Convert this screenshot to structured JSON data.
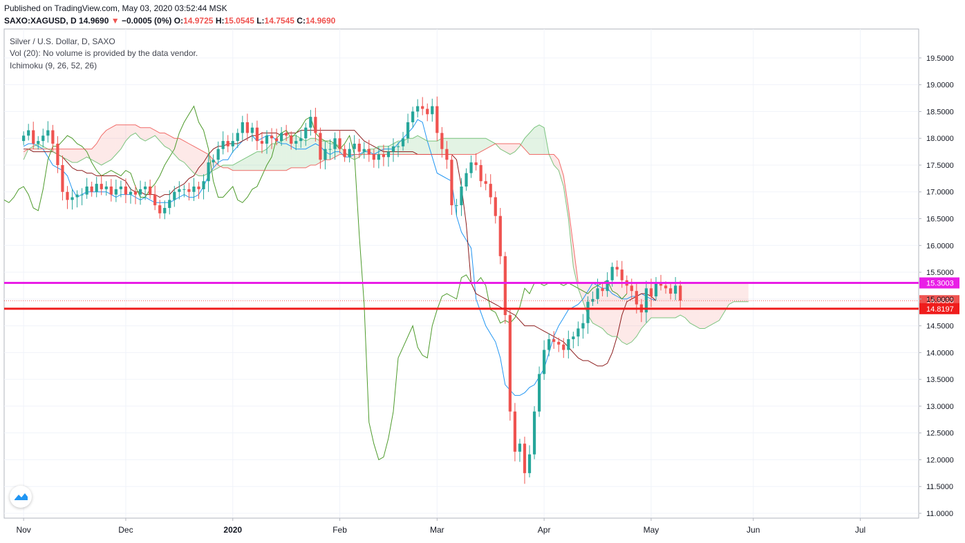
{
  "header": {
    "published": "Published on TradingView.com, May 03, 2020 03:52:44 MSK",
    "symbol": "SAXO:XAGUSD, D",
    "last": "14.9690",
    "down_arrow": "▼",
    "change": "−0.0005 (0%)",
    "o_label": "O:",
    "o_value": "14.9725",
    "h_label": "H:",
    "h_value": "15.0545",
    "l_label": "L:",
    "l_value": "14.7545",
    "c_label": "C:",
    "c_value": "14.9690"
  },
  "legend": {
    "title": "Silver / U.S. Dollar, D, SAXO",
    "volume": "Vol (20): No volume is provided by the data vendor.",
    "indicator": "Ichimoku (9, 26, 52, 26)"
  },
  "logo_icon": "tradingview-logo-icon",
  "colors": {
    "up": "#26a69a",
    "down": "#ef5350",
    "tenkan": "#2196f3",
    "kijun": "#8b1a1a",
    "chikou": "#4c9a2a",
    "span_a": "#66bb6a",
    "span_b": "#ef5350",
    "magenta_line": "#e91ee6",
    "red_line": "#ef1c1c"
  },
  "chart_data": {
    "type": "candlestick",
    "ylim": [
      11.0,
      19.5
    ],
    "y_ticks": [
      "19.5000",
      "19.0000",
      "18.5000",
      "18.0000",
      "17.5000",
      "17.0000",
      "16.5000",
      "16.0000",
      "15.5000",
      "15.0000",
      "14.5000",
      "14.0000",
      "13.5000",
      "13.0000",
      "12.5000",
      "12.0000",
      "11.5000",
      "11.0000"
    ],
    "x_labels": [
      {
        "label": "Nov",
        "bold": false,
        "x": 0
      },
      {
        "label": "Dec",
        "bold": false,
        "x": 21
      },
      {
        "label": "2020",
        "bold": true,
        "x": 43
      },
      {
        "label": "Feb",
        "bold": false,
        "x": 65
      },
      {
        "label": "Mar",
        "bold": false,
        "x": 85
      },
      {
        "label": "Apr",
        "bold": false,
        "x": 107
      },
      {
        "label": "May",
        "bold": false,
        "x": 129
      },
      {
        "label": "Jun",
        "bold": false,
        "x": 150
      },
      {
        "label": "Jul",
        "bold": false,
        "x": 172
      }
    ],
    "x_range": [
      -4,
      184
    ],
    "horizontal_lines": [
      {
        "value": 15.3003,
        "label": "15.3003",
        "color": "#e91ee6"
      },
      {
        "value": 14.8197,
        "label": "14.8197",
        "color": "#ef1c1c"
      }
    ],
    "last_price": {
      "value": 14.969,
      "label": "14.9690"
    },
    "close": [
      18.05,
      18.15,
      17.9,
      17.95,
      18.05,
      18.15,
      17.9,
      17.5,
      17.0,
      16.85,
      16.9,
      16.95,
      16.95,
      17.1,
      17.0,
      17.15,
      17.05,
      17.1,
      16.95,
      17.05,
      17.1,
      16.95,
      17.0,
      16.95,
      17.05,
      17.1,
      16.95,
      16.75,
      16.6,
      16.7,
      16.85,
      17.0,
      17.05,
      17.05,
      17.0,
      17.1,
      17.05,
      17.2,
      17.55,
      17.6,
      17.8,
      17.95,
      17.85,
      17.95,
      18.1,
      18.3,
      18.1,
      18.2,
      17.95,
      17.9,
      18.05,
      18.0,
      17.95,
      18.1,
      18.05,
      17.9,
      17.95,
      18.0,
      18.2,
      18.4,
      18.1,
      17.6,
      17.8,
      17.8,
      18.0,
      17.8,
      17.65,
      17.8,
      17.9,
      17.75,
      17.8,
      17.7,
      17.6,
      17.7,
      17.65,
      17.75,
      17.85,
      17.85,
      18.0,
      18.3,
      18.5,
      18.6,
      18.55,
      18.45,
      18.6,
      18.1,
      17.8,
      17.6,
      16.75,
      16.75,
      17.1,
      17.35,
      17.55,
      17.5,
      17.2,
      17.15,
      16.9,
      16.55,
      15.8,
      14.7,
      12.9,
      12.15,
      12.3,
      11.75,
      12.1,
      12.9,
      13.6,
      14.05,
      14.25,
      14.2,
      14.15,
      14.05,
      14.25,
      14.3,
      14.45,
      14.55,
      14.95,
      15.0,
      15.2,
      15.15,
      15.35,
      15.6,
      15.55,
      15.35,
      15.25,
      15.15,
      14.9,
      14.75,
      15.2,
      15.05,
      15.3,
      15.25,
      15.2,
      15.1,
      15.25,
      14.97
    ],
    "series": [
      {
        "name": "Conversion Line",
        "kind": "tenkan",
        "start": 0,
        "values": [
          17.85,
          17.9,
          17.9,
          17.85,
          17.8,
          17.65,
          17.5,
          17.45,
          17.4,
          17.3,
          17.05,
          16.9,
          16.95,
          17.0,
          17.0,
          17.0,
          17.0,
          17.0,
          16.95,
          16.9,
          16.95,
          16.95,
          16.95,
          16.9,
          16.85,
          16.9,
          16.85,
          16.8,
          16.8,
          16.8,
          16.8,
          16.85,
          16.9,
          16.95,
          16.9,
          16.9,
          16.95,
          17.1,
          17.3,
          17.45,
          17.55,
          17.6,
          17.6,
          17.75,
          17.85,
          17.95,
          18.0,
          18.05,
          17.95,
          18.0,
          18.05,
          18.05,
          17.95,
          17.9,
          17.9,
          17.85,
          17.8,
          17.8,
          17.8,
          17.85,
          17.9,
          17.85,
          17.75,
          17.7,
          17.75,
          17.75,
          17.65,
          17.65,
          17.7,
          17.7,
          17.75,
          17.75,
          17.7,
          17.75,
          17.8,
          17.8,
          17.8,
          17.9,
          18.0,
          18.1,
          18.2,
          18.35,
          18.3,
          17.95,
          17.65,
          17.35,
          17.3,
          17.25,
          17.2,
          16.55,
          16.25,
          16.1,
          15.95,
          15.0,
          14.75,
          14.5,
          14.35,
          14.2,
          13.9,
          13.4,
          13.3,
          13.2,
          13.2,
          13.25,
          13.35,
          13.4,
          13.55,
          13.7,
          14.0,
          14.3,
          14.5,
          14.65,
          14.8,
          14.85,
          14.9,
          15.0,
          15.15,
          15.3,
          15.25,
          15.2,
          15.2,
          15.1,
          15.05,
          15.0,
          15.0,
          15.05,
          15.05,
          15.1,
          15.05,
          15.0,
          14.97
        ]
      },
      {
        "name": "Base Line",
        "kind": "kijun",
        "start": 0,
        "values": [
          17.8,
          17.8,
          17.75,
          17.75,
          17.75,
          17.75,
          17.75,
          17.7,
          17.65,
          17.55,
          17.45,
          17.4,
          17.4,
          17.35,
          17.35,
          17.3,
          17.3,
          17.3,
          17.3,
          17.3,
          17.25,
          17.2,
          17.05,
          17.0,
          17.0,
          16.95,
          16.95,
          16.95,
          16.9,
          16.95,
          16.95,
          17.05,
          17.1,
          17.15,
          17.25,
          17.3,
          17.45,
          17.55,
          17.7,
          17.8,
          17.85,
          17.85,
          17.9,
          17.9,
          17.9,
          17.95,
          18.0,
          18.05,
          18.05,
          18.1,
          18.1,
          18.1,
          18.1,
          18.05,
          18.1,
          18.1,
          18.1,
          18.15,
          18.15,
          18.15,
          18.15,
          18.15,
          18.15,
          18.15,
          18.15,
          18.15,
          18.15,
          18.15,
          18.15,
          18.05,
          17.95,
          17.9,
          17.85,
          17.8,
          17.75,
          17.75,
          17.75,
          17.75,
          17.75,
          17.75,
          17.75,
          17.7,
          17.7,
          17.7,
          17.7,
          17.7,
          17.7,
          17.7,
          17.7,
          17.6,
          17.1,
          16.4,
          15.3,
          15.1,
          15.05,
          15.0,
          14.95,
          14.9,
          14.85,
          14.8,
          14.75,
          14.7,
          14.6,
          14.5,
          14.5,
          14.5,
          14.45,
          14.4,
          14.35,
          14.3,
          14.25,
          14.2,
          14.1,
          14.0,
          13.9,
          13.85,
          13.85,
          13.8,
          13.75,
          13.75,
          13.8,
          14.0,
          14.3,
          14.7,
          14.95,
          15.0,
          15.05,
          15.1,
          15.1,
          15.05,
          14.97
        ]
      },
      {
        "name": "Lagging Span",
        "kind": "chikou",
        "start": -4,
        "values": [
          16.85,
          16.8,
          16.9,
          17.05,
          17.1,
          16.95,
          16.7,
          16.65,
          17.05,
          17.6,
          17.85,
          17.85,
          17.95,
          18.05,
          18.0,
          17.9,
          17.85,
          17.75,
          17.55,
          17.4,
          17.3,
          17.35,
          17.4,
          17.35,
          17.3,
          17.4,
          17.35,
          17.1,
          16.9,
          16.9,
          17.05,
          17.15,
          17.3,
          17.5,
          17.65,
          17.8,
          18.1,
          18.3,
          18.45,
          18.6,
          18.3,
          18.15,
          17.8,
          17.2,
          16.9,
          16.9,
          17.0,
          17.1,
          16.85,
          16.8,
          16.9,
          17.05,
          17.1,
          17.3,
          17.5,
          17.65,
          18.0,
          18.1,
          18.15,
          18.0,
          18.1,
          18.2,
          18.35,
          18.4,
          18.1,
          18.0,
          17.95,
          17.95,
          17.9,
          17.8,
          17.9,
          18.05,
          17.7,
          16.2,
          14.9,
          12.7,
          12.3,
          12.0,
          12.05,
          12.4,
          12.9,
          13.9,
          14.1,
          14.3,
          14.5,
          14.1,
          13.95,
          13.9,
          14.5,
          14.8,
          15.05,
          15.1,
          15.05,
          15.0,
          15.4,
          15.45,
          15.3,
          15.3,
          15.4,
          15.25,
          14.8,
          14.75,
          14.55,
          14.6,
          14.55,
          14.65,
          14.85,
          15.2,
          15.1,
          15.3,
          15.3,
          15.25,
          15.3,
          15.3,
          15.3,
          15.25,
          15.3,
          15.25,
          15.2,
          15.15,
          15.1,
          15.2,
          15.25,
          15.3,
          15.35,
          15.15,
          15.1,
          15.0,
          15.1
        ]
      },
      {
        "name": "Leading Span A",
        "kind": "span_a",
        "start": 0,
        "values": [
          17.6,
          17.8,
          17.85,
          17.9,
          17.85,
          17.8,
          17.75,
          17.7,
          17.65,
          17.6,
          17.55,
          17.55,
          17.6,
          17.65,
          17.6,
          17.55,
          17.5,
          17.55,
          17.6,
          17.7,
          17.8,
          17.95,
          18.05,
          18.1,
          18.0,
          17.95,
          18.0,
          18.05,
          17.95,
          17.85,
          17.8,
          17.7,
          17.6,
          17.55,
          17.45,
          17.35,
          17.3,
          17.3,
          17.35,
          17.4,
          17.45,
          17.5,
          17.5,
          17.5,
          17.55,
          17.6,
          17.65,
          17.7,
          17.75,
          17.75,
          17.8,
          17.9,
          17.9,
          17.95,
          18.0,
          18.05,
          18.05,
          18.0,
          17.95,
          18.0,
          18.0,
          17.95,
          17.95,
          17.9,
          17.9,
          17.85,
          17.75,
          17.65,
          17.6,
          17.65,
          17.75,
          17.8,
          17.8,
          17.85,
          17.85,
          17.85,
          17.9,
          17.95,
          17.95,
          18.0,
          18.0,
          18.05,
          18.0,
          17.95,
          17.95,
          17.95,
          18.0,
          18.0,
          18.0,
          18.0,
          18.0,
          18.0,
          18.0,
          18.0,
          18.0,
          18.0,
          17.95,
          17.9,
          17.8,
          17.75,
          17.7,
          17.75,
          17.85,
          18.0,
          18.1,
          18.2,
          18.25,
          18.2,
          17.7,
          17.5,
          17.4,
          17.1,
          16.5,
          15.6,
          15.2,
          14.95,
          14.7,
          14.55,
          14.5,
          14.45,
          14.35,
          14.3,
          14.3,
          14.2,
          14.15,
          14.2,
          14.3,
          14.45,
          14.55,
          14.65,
          14.65,
          14.65,
          14.65,
          14.65,
          14.65,
          14.7,
          14.65,
          14.55,
          14.5,
          14.45,
          14.45,
          14.5,
          14.55,
          14.6,
          14.75,
          14.9,
          14.95,
          14.95,
          14.95,
          14.95
        ]
      },
      {
        "name": "Leading Span B",
        "kind": "span_b",
        "start": 0,
        "values": [
          17.75,
          17.8,
          17.8,
          17.8,
          17.8,
          17.8,
          17.8,
          17.8,
          17.8,
          17.8,
          17.8,
          17.8,
          17.8,
          17.8,
          17.8,
          17.9,
          18.05,
          18.15,
          18.2,
          18.25,
          18.25,
          18.25,
          18.25,
          18.25,
          18.2,
          18.2,
          18.2,
          18.15,
          18.1,
          18.1,
          18.05,
          18.0,
          18.0,
          17.95,
          17.9,
          17.85,
          17.8,
          17.75,
          17.7,
          17.6,
          17.5,
          17.45,
          17.45,
          17.4,
          17.4,
          17.4,
          17.4,
          17.4,
          17.4,
          17.4,
          17.4,
          17.4,
          17.4,
          17.4,
          17.4,
          17.45,
          17.45,
          17.45,
          17.45,
          17.5,
          17.5,
          17.55,
          17.6,
          17.6,
          17.65,
          17.7,
          17.7,
          17.7,
          17.7,
          17.7,
          17.7,
          17.7,
          17.7,
          17.7,
          17.7,
          17.7,
          17.7,
          17.7,
          17.7,
          17.7,
          17.7,
          17.7,
          17.7,
          17.7,
          17.7,
          17.7,
          17.7,
          17.7,
          17.7,
          17.7,
          17.7,
          17.7,
          17.7,
          17.7,
          17.75,
          17.8,
          17.85,
          17.9,
          17.9,
          17.9,
          17.9,
          17.9,
          17.9,
          17.8,
          17.7,
          17.7,
          17.7,
          17.7,
          17.7,
          17.7,
          17.6,
          17.3,
          16.7,
          16.0,
          15.3,
          15.3,
          15.3,
          15.3,
          15.3,
          15.3,
          15.3,
          15.3,
          15.3,
          15.3,
          15.3,
          15.3,
          15.3,
          15.3,
          15.3,
          15.3,
          15.3,
          15.3,
          15.3,
          15.3,
          15.3,
          15.3,
          15.3,
          15.3,
          15.3,
          15.3,
          15.3,
          15.3,
          15.3,
          15.3,
          15.3,
          15.3,
          15.3,
          15.3,
          15.3,
          15.3
        ]
      }
    ]
  }
}
